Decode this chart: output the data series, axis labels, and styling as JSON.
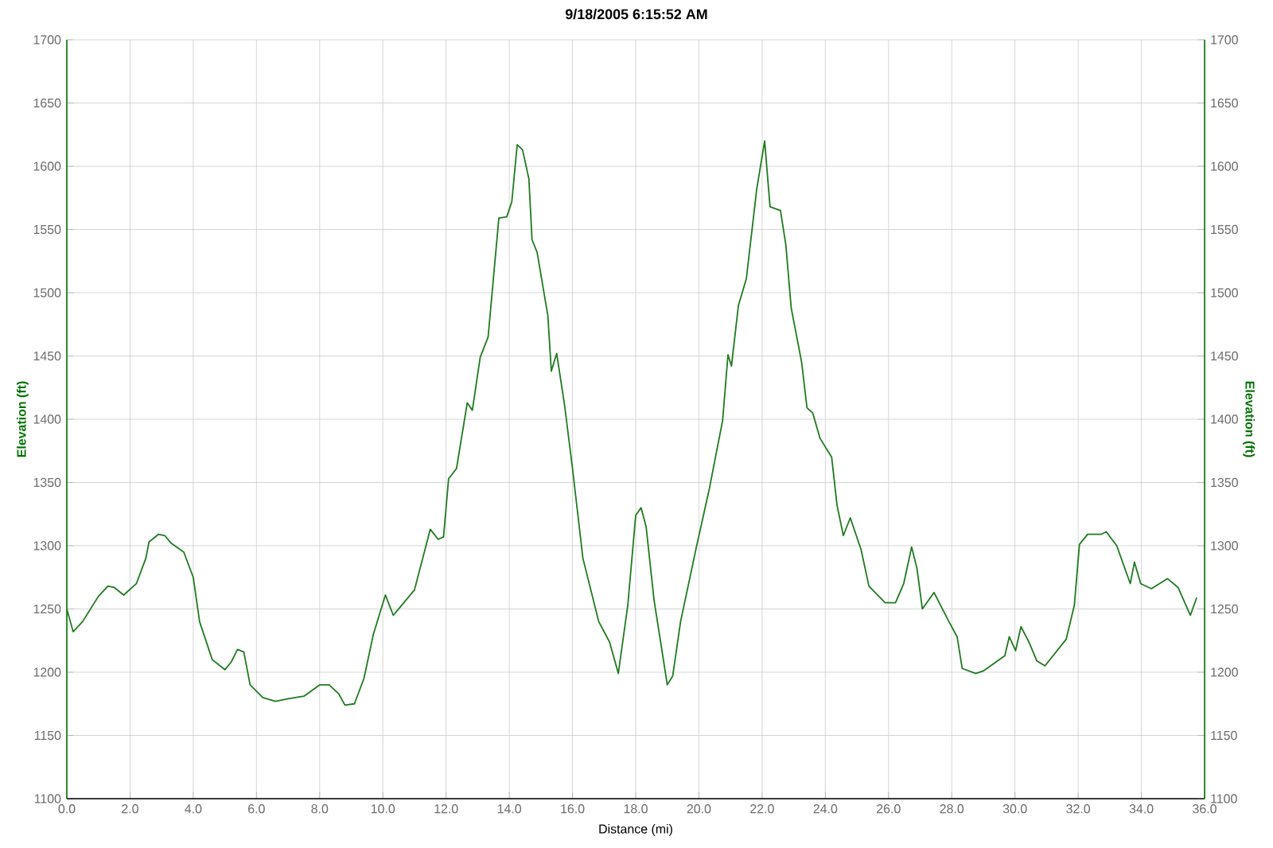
{
  "chart_data": {
    "type": "line",
    "title": "9/18/2005 6:15:52 AM",
    "xlabel": "Distance (mi)",
    "ylabel": "Elevation (ft)",
    "y2label": "Elevation (ft)",
    "xlim": [
      0,
      36
    ],
    "ylim": [
      1100,
      1700
    ],
    "y2lim": [
      1100,
      1700
    ],
    "xticks": [
      {
        "value": 0,
        "label": "0.0"
      },
      {
        "value": 2,
        "label": "2.0"
      },
      {
        "value": 4,
        "label": "4.0"
      },
      {
        "value": 6,
        "label": "6.0"
      },
      {
        "value": 8,
        "label": "8.0"
      },
      {
        "value": 10,
        "label": "10.0"
      },
      {
        "value": 12,
        "label": "12.0"
      },
      {
        "value": 14,
        "label": "14.0"
      },
      {
        "value": 16,
        "label": "16.0"
      },
      {
        "value": 18,
        "label": "18.0"
      },
      {
        "value": 20,
        "label": "20.0"
      },
      {
        "value": 22,
        "label": "22.0"
      },
      {
        "value": 24,
        "label": "24.0"
      },
      {
        "value": 26,
        "label": "26.0"
      },
      {
        "value": 28,
        "label": "28.0"
      },
      {
        "value": 30,
        "label": "30.0"
      },
      {
        "value": 32,
        "label": "32.0"
      },
      {
        "value": 34,
        "label": "34.0"
      },
      {
        "value": 36,
        "label": "36.0"
      }
    ],
    "yticks": [
      1100,
      1150,
      1200,
      1250,
      1300,
      1350,
      1400,
      1450,
      1500,
      1550,
      1600,
      1650,
      1700
    ],
    "y2ticks": [
      1100,
      1150,
      1200,
      1250,
      1300,
      1350,
      1400,
      1450,
      1500,
      1550,
      1600,
      1650,
      1700
    ],
    "grid": true,
    "marker": "none",
    "line_style": "solid",
    "series": [
      {
        "color": "#1f7a1f",
        "x": [
          0,
          0.2,
          0.5,
          1.0,
          1.3,
          1.5,
          1.8,
          2.2,
          2.5,
          2.6,
          2.9,
          3.1,
          3.3,
          3.7,
          4.0,
          4.2,
          4.6,
          5.0,
          5.2,
          5.4,
          5.6,
          5.8,
          6.2,
          6.6,
          7.0,
          7.5,
          8.0,
          8.3,
          8.6,
          8.8,
          9.1,
          9.4,
          9.7,
          10.08,
          10.33,
          11.0,
          11.5,
          11.75,
          11.92,
          12.08,
          12.33,
          12.67,
          12.83,
          13.08,
          13.33,
          13.67,
          13.92,
          14.08,
          14.25,
          14.42,
          14.62,
          14.72,
          14.88,
          15.22,
          15.33,
          15.5,
          15.75,
          16.0,
          16.33,
          16.83,
          17.17,
          17.45,
          17.75,
          18.0,
          18.17,
          18.33,
          18.58,
          19.0,
          19.17,
          19.42,
          19.92,
          20.33,
          20.75,
          20.92,
          21.03,
          21.25,
          21.5,
          21.83,
          22.08,
          22.25,
          22.58,
          22.75,
          22.92,
          23.25,
          23.42,
          23.6,
          23.83,
          24.2,
          24.37,
          24.57,
          24.79,
          25.13,
          25.38,
          25.89,
          26.22,
          26.48,
          26.73,
          26.9,
          27.07,
          27.44,
          27.91,
          28.17,
          28.33,
          28.76,
          29.0,
          29.68,
          29.82,
          30.02,
          30.19,
          30.44,
          30.69,
          30.95,
          31.62,
          31.88,
          32.04,
          32.3,
          32.72,
          32.89,
          33.22,
          33.65,
          33.78,
          33.98,
          34.32,
          34.83,
          35.16,
          35.55,
          35.75
        ],
        "values": [
          1250,
          1232,
          1240,
          1260,
          1268,
          1267,
          1261,
          1270,
          1290,
          1303,
          1309,
          1308,
          1302,
          1295,
          1275,
          1240,
          1210,
          1202,
          1208,
          1218,
          1216,
          1190,
          1180,
          1177,
          1179,
          1181,
          1190,
          1190,
          1183,
          1174,
          1175,
          1195,
          1230,
          1261,
          1245,
          1265,
          1313,
          1305,
          1307,
          1353,
          1361,
          1413,
          1407,
          1449,
          1465,
          1559,
          1560,
          1572,
          1617,
          1613,
          1590,
          1542,
          1532,
          1482,
          1438,
          1452,
          1411,
          1361,
          1290,
          1240,
          1224,
          1199,
          1253,
          1324,
          1330,
          1315,
          1257,
          1190,
          1197,
          1240,
          1299,
          1345,
          1399,
          1451,
          1442,
          1490,
          1511,
          1582,
          1620,
          1568,
          1565,
          1538,
          1488,
          1445,
          1409,
          1405,
          1385,
          1370,
          1332,
          1308,
          1322,
          1297,
          1268,
          1255,
          1255,
          1270,
          1299,
          1282,
          1250,
          1263,
          1240,
          1228,
          1203,
          1199,
          1201,
          1213,
          1228,
          1217,
          1236,
          1224,
          1209,
          1205,
          1226,
          1253,
          1301,
          1309,
          1309,
          1311,
          1300,
          1270,
          1287,
          1270,
          1266,
          1274,
          1267,
          1245,
          1259
        ]
      }
    ]
  }
}
